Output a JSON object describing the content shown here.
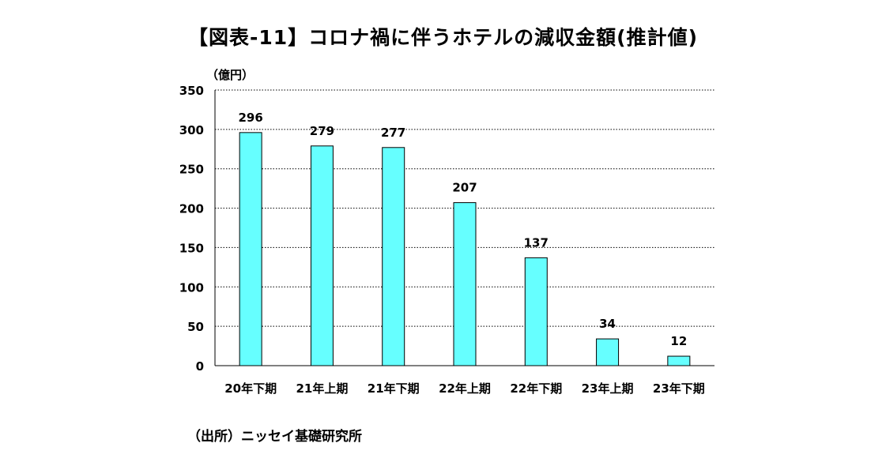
{
  "chart_data": {
    "type": "bar",
    "title": "【図表-11】コロナ禍に伴うホテルの減収金額(推計値)",
    "unit_label": "（億円）",
    "source": "（出所）ニッセイ基礎研究所",
    "categories": [
      "20年下期",
      "21年上期",
      "21年下期",
      "22年上期",
      "22年下期",
      "23年上期",
      "23年下期"
    ],
    "values": [
      296,
      279,
      277,
      207,
      137,
      34,
      12
    ],
    "data_labels": [
      "296",
      "279",
      "277",
      "207",
      "137",
      "34",
      "12"
    ],
    "ylim": [
      0,
      350
    ],
    "yticks": [
      0,
      50,
      100,
      150,
      200,
      250,
      300,
      350
    ],
    "grid": "dotted horizontal",
    "legend": "none",
    "colors": {
      "bar_fill": "#66FFFF",
      "bar_stroke": "#000000",
      "grid": "#000000",
      "text": "#000000"
    }
  }
}
